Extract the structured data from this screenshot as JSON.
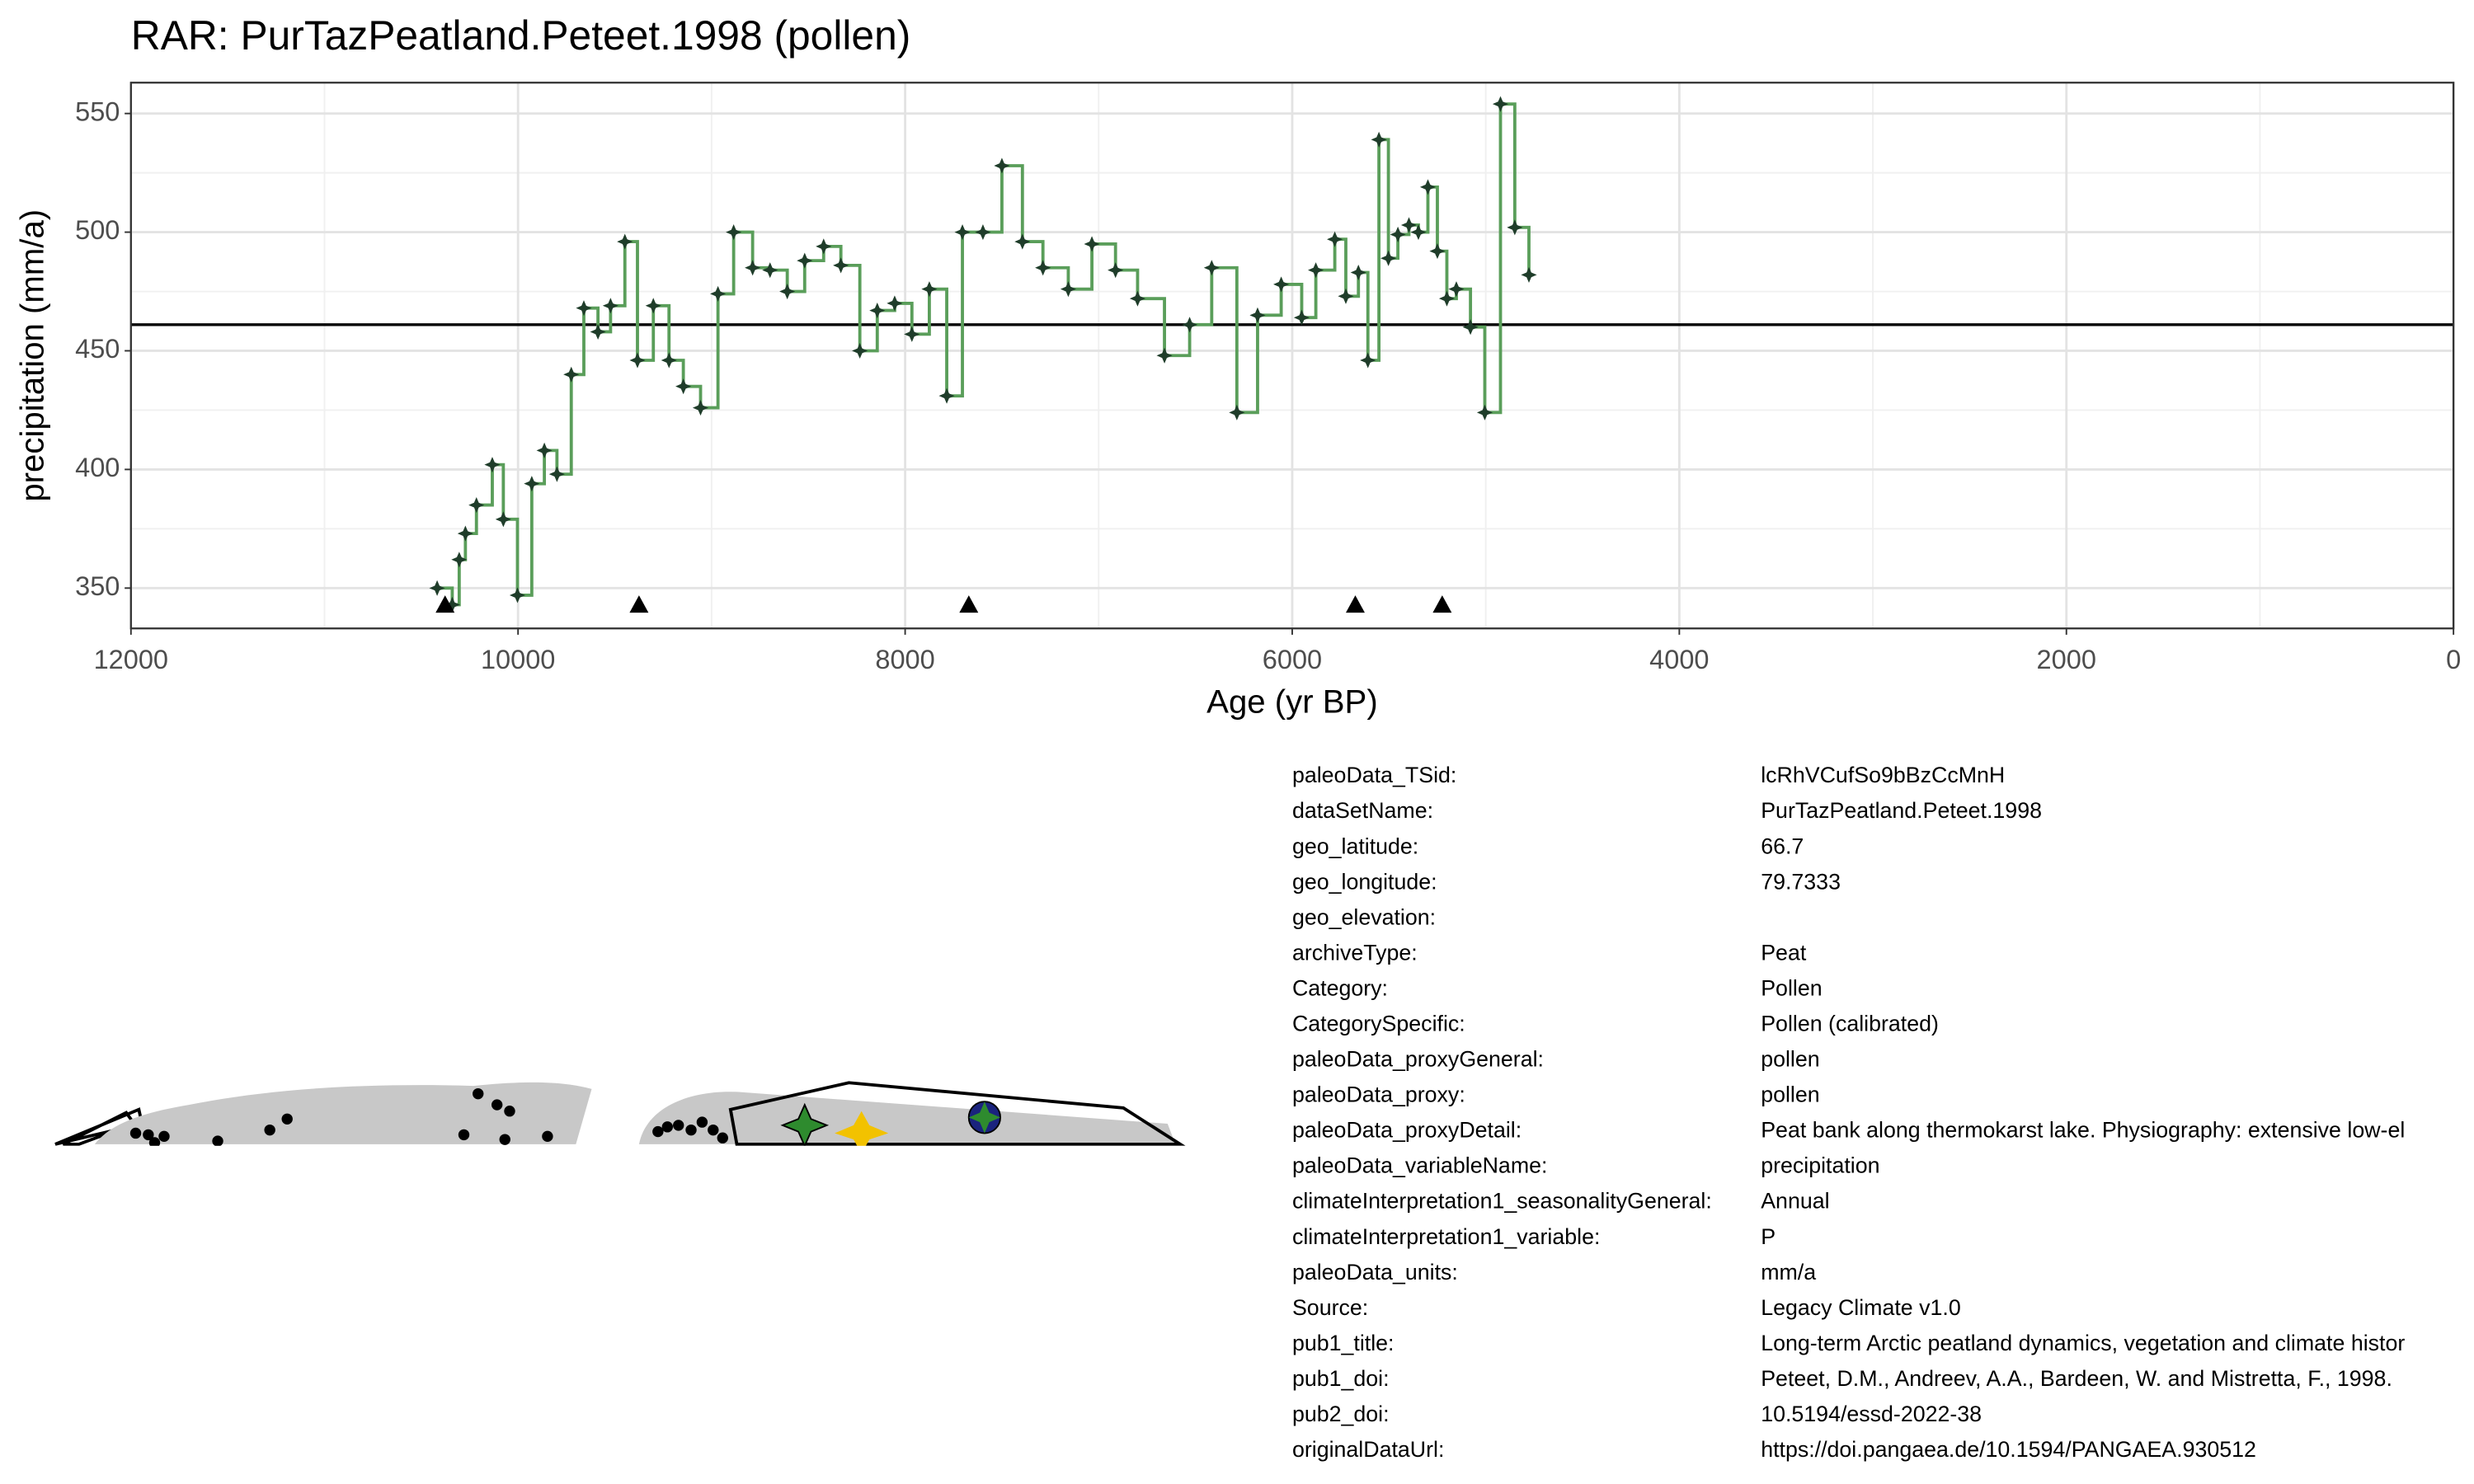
{
  "chart_data": {
    "type": "step",
    "title": "RAR: PurTazPeatland.Peteet.1998 (pollen)",
    "x_label": "Age (yr BP)",
    "y_label": "precipitation (mm/a)",
    "xlim": [
      12000,
      0
    ],
    "xticks": [
      12000,
      10000,
      8000,
      6000,
      4000,
      2000,
      0
    ],
    "xminor": [
      11000,
      9000,
      7000,
      5000,
      3000,
      1000
    ],
    "ylim": [
      333,
      563
    ],
    "yticks": [
      350,
      400,
      450,
      500,
      550
    ],
    "yminor": [
      375,
      425,
      475,
      525
    ],
    "grid": true,
    "color": "#5a9e5a",
    "point_color": "#1f3d2a",
    "reference": 461,
    "age_controls": [
      10377,
      9375,
      7671,
      5674,
      5225
    ],
    "series": [
      {
        "name": "precipitation",
        "x": [
          10418,
          10340,
          10304,
          10272,
          10215,
          10133,
          10076,
          10003,
          9929,
          9864,
          9799,
          9725,
          9660,
          9587,
          9522,
          9448,
          9383,
          9301,
          9220,
          9146,
          9057,
          8967,
          8886,
          8788,
          8698,
          8609,
          8519,
          8421,
          8332,
          8234,
          8144,
          8054,
          7965,
          7875,
          7785,
          7704,
          7598,
          7500,
          7394,
          7288,
          7157,
          7035,
          6913,
          6799,
          6660,
          6530,
          6416,
          6286,
          6179,
          6057,
          5951,
          5878,
          5780,
          5723,
          5658,
          5609,
          5552,
          5503,
          5454,
          5397,
          5348,
          5299,
          5250,
          5201,
          5152,
          5079,
          5005,
          4924,
          4850,
          4777
        ],
        "values": [
          350,
          343,
          362,
          373,
          385,
          402,
          379,
          347,
          394,
          408,
          398,
          440,
          468,
          458,
          469,
          496,
          446,
          469,
          446,
          435,
          426,
          474,
          500,
          485,
          484,
          475,
          488,
          494,
          486,
          450,
          467,
          470,
          457,
          476,
          431,
          500,
          500,
          528,
          496,
          485,
          476,
          495,
          484,
          472,
          448,
          461,
          485,
          424,
          465,
          478,
          464,
          484,
          497,
          473,
          483,
          446,
          539,
          489,
          499,
          503,
          500,
          519,
          492,
          472,
          476,
          460,
          424,
          554,
          502,
          482
        ]
      }
    ]
  },
  "metadata": {
    "rows": [
      [
        "paleoData_TSid:",
        "lcRhVCufSo9bBzCcMnH"
      ],
      [
        "dataSetName:",
        "PurTazPeatland.Peteet.1998"
      ],
      [
        "geo_latitude:",
        "66.7"
      ],
      [
        "geo_longitude:",
        "79.7333"
      ],
      [
        "geo_elevation:"
      ],
      [
        "archiveType:",
        "Peat"
      ],
      [
        "Category:",
        "Pollen"
      ],
      [
        "CategorySpecific:",
        "Pollen (calibrated)"
      ],
      [
        "paleoData_proxyGeneral:",
        "pollen"
      ],
      [
        "paleoData_proxy:",
        "pollen"
      ],
      [
        "paleoData_proxyDetail:",
        "Peat bank along thermokarst lake. Physiography: extensive low-el"
      ],
      [
        "paleoData_variableName:",
        "precipitation"
      ],
      [
        "climateInterpretation1_seasonalityGeneral:",
        "Annual"
      ],
      [
        "climateInterpretation1_variable:",
        "P"
      ],
      [
        "paleoData_units:",
        "mm/a"
      ],
      [
        "Source:",
        "Legacy Climate v1.0"
      ],
      [
        "pub1_title:",
        "Long-term Arctic peatland dynamics, vegetation and climate histor"
      ],
      [
        "pub1_doi:",
        "Peteet, D.M., Andreev, A.A., Bardeen, W. and Mistretta, F., 1998."
      ],
      [
        "pub2_doi:",
        "10.5194/essd-2022-38"
      ],
      [
        "originalDataUrl:",
        "https://doi.pangaea.de/10.1594/PANGAEA.930512"
      ]
    ]
  }
}
